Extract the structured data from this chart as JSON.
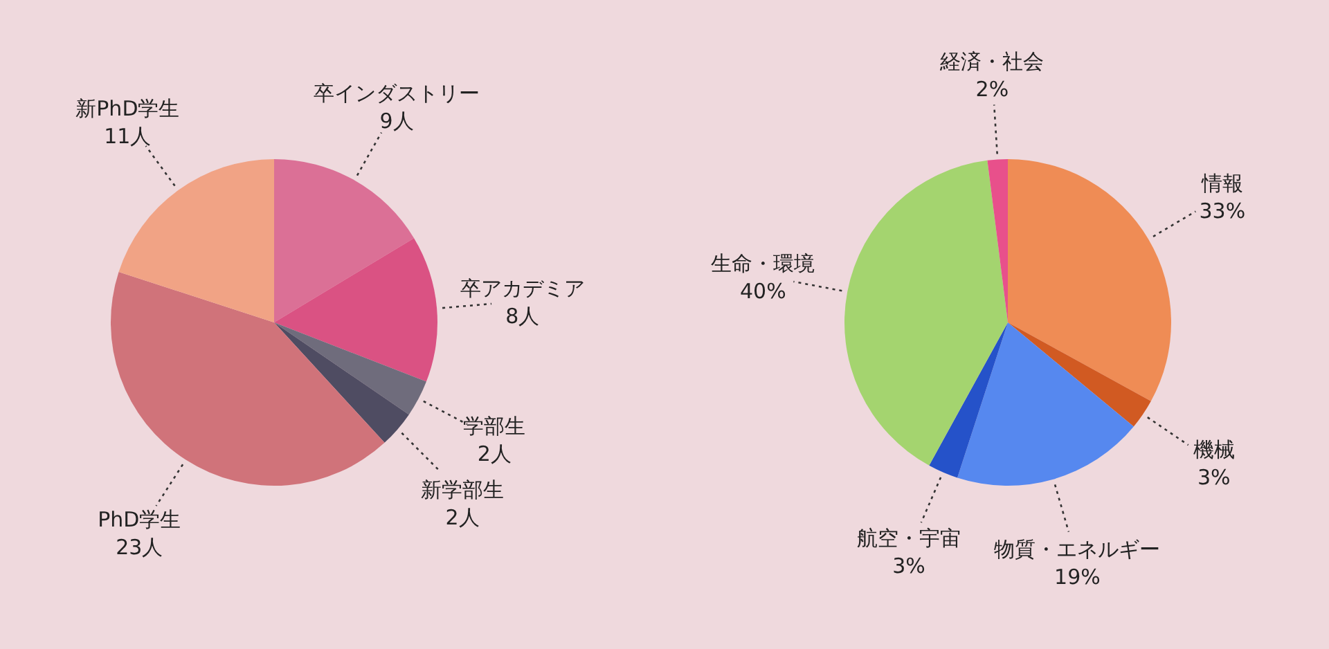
{
  "chart_data": [
    {
      "type": "pie",
      "categories": [
        "卒インダストリー",
        "卒アカデミア",
        "学部生",
        "新学部生",
        "PhD学生",
        "新PhD学生"
      ],
      "values": [
        9,
        8,
        2,
        2,
        23,
        11
      ],
      "value_labels": [
        "9人",
        "8人",
        "2人",
        "2人",
        "23人",
        "11人"
      ],
      "colors": [
        "#db7096",
        "#da5283",
        "#6f6c7c",
        "#4f4c62",
        "#d0737a",
        "#f1a385"
      ]
    },
    {
      "type": "pie",
      "categories": [
        "情報",
        "機械",
        "物質・エネルギー",
        "航空・宇宙",
        "生命・環境",
        "経済・社会"
      ],
      "values": [
        33,
        3,
        19,
        3,
        40,
        2
      ],
      "value_labels": [
        "33%",
        "3%",
        "19%",
        "3%",
        "40%",
        "2%"
      ],
      "colors": [
        "#ef8c55",
        "#d15a22",
        "#5688ef",
        "#2552c9",
        "#a4d46f",
        "#e8508b"
      ]
    }
  ]
}
